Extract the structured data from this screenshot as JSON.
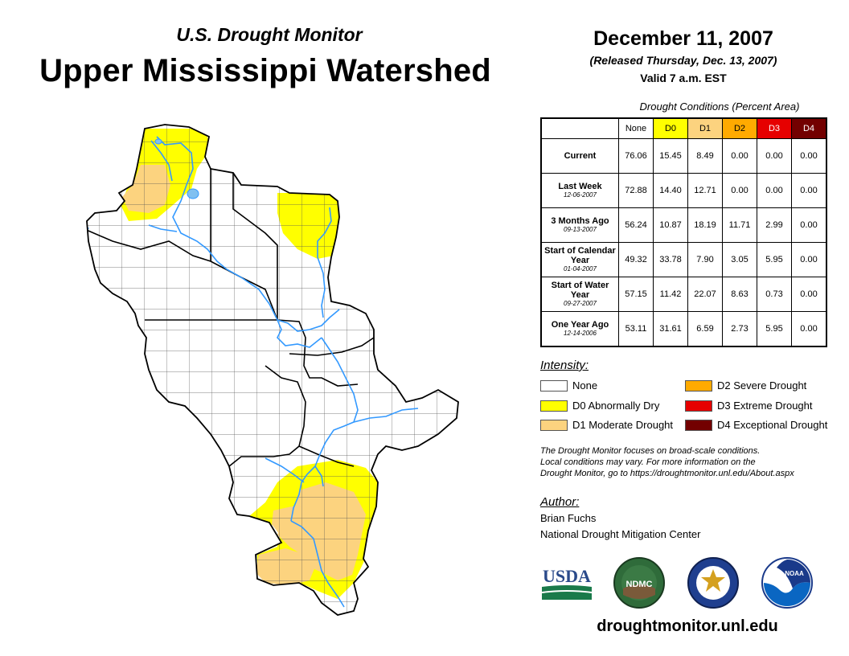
{
  "header": {
    "subtitle": "U.S. Drought Monitor",
    "title": "Upper Mississippi Watershed",
    "date": "December 11, 2007",
    "released": "(Released Thursday, Dec. 13, 2007)",
    "valid": "Valid 7 a.m. EST"
  },
  "table": {
    "caption": "Drought Conditions (Percent Area)",
    "columns": [
      "None",
      "D0",
      "D1",
      "D2",
      "D3",
      "D4"
    ],
    "column_colors": [
      "#ffffff",
      "#ffff00",
      "#fcd37f",
      "#ffaa00",
      "#e60000",
      "#730000"
    ],
    "rows": [
      {
        "label": "Current",
        "sublabel": "",
        "values": [
          "76.06",
          "15.45",
          "8.49",
          "0.00",
          "0.00",
          "0.00"
        ]
      },
      {
        "label": "Last Week",
        "sublabel": "12-06-2007",
        "values": [
          "72.88",
          "14.40",
          "12.71",
          "0.00",
          "0.00",
          "0.00"
        ]
      },
      {
        "label": "3 Months Ago",
        "sublabel": "09-13-2007",
        "values": [
          "56.24",
          "10.87",
          "18.19",
          "11.71",
          "2.99",
          "0.00"
        ]
      },
      {
        "label": "Start of Calendar Year",
        "sublabel": "01-04-2007",
        "values": [
          "49.32",
          "33.78",
          "7.90",
          "3.05",
          "5.95",
          "0.00"
        ]
      },
      {
        "label": "Start of Water Year",
        "sublabel": "09-27-2007",
        "values": [
          "57.15",
          "11.42",
          "22.07",
          "8.63",
          "0.73",
          "0.00"
        ]
      },
      {
        "label": "One Year Ago",
        "sublabel": "12-14-2006",
        "values": [
          "53.11",
          "31.61",
          "6.59",
          "2.73",
          "5.95",
          "0.00"
        ]
      }
    ]
  },
  "legend": {
    "title": "Intensity:",
    "items": [
      {
        "label": "None",
        "color": "#ffffff"
      },
      {
        "label": "D0 Abnormally Dry",
        "color": "#ffff00"
      },
      {
        "label": "D1 Moderate Drought",
        "color": "#fcd37f"
      },
      {
        "label": "D2 Severe Drought",
        "color": "#ffaa00"
      },
      {
        "label": "D3 Extreme Drought",
        "color": "#e60000"
      },
      {
        "label": "D4 Exceptional Drought",
        "color": "#730000"
      }
    ]
  },
  "note": {
    "line1": "The Drought Monitor focuses on broad-scale conditions.",
    "line2": "Local conditions may vary. For more information on the",
    "line3": "Drought Monitor, go to https://droughtmonitor.unl.edu/About.aspx"
  },
  "author": {
    "title": "Author:",
    "name": "Brian Fuchs",
    "org": "National Drought Mitigation Center"
  },
  "logos": {
    "usda": "USDA",
    "ndmc": "NDMC",
    "noaa": "NOAA"
  },
  "footer": {
    "url": "droughtmonitor.unl.edu"
  },
  "colors": {
    "river": "#3399ff",
    "county_line": "#555555",
    "state_line": "#000000"
  }
}
